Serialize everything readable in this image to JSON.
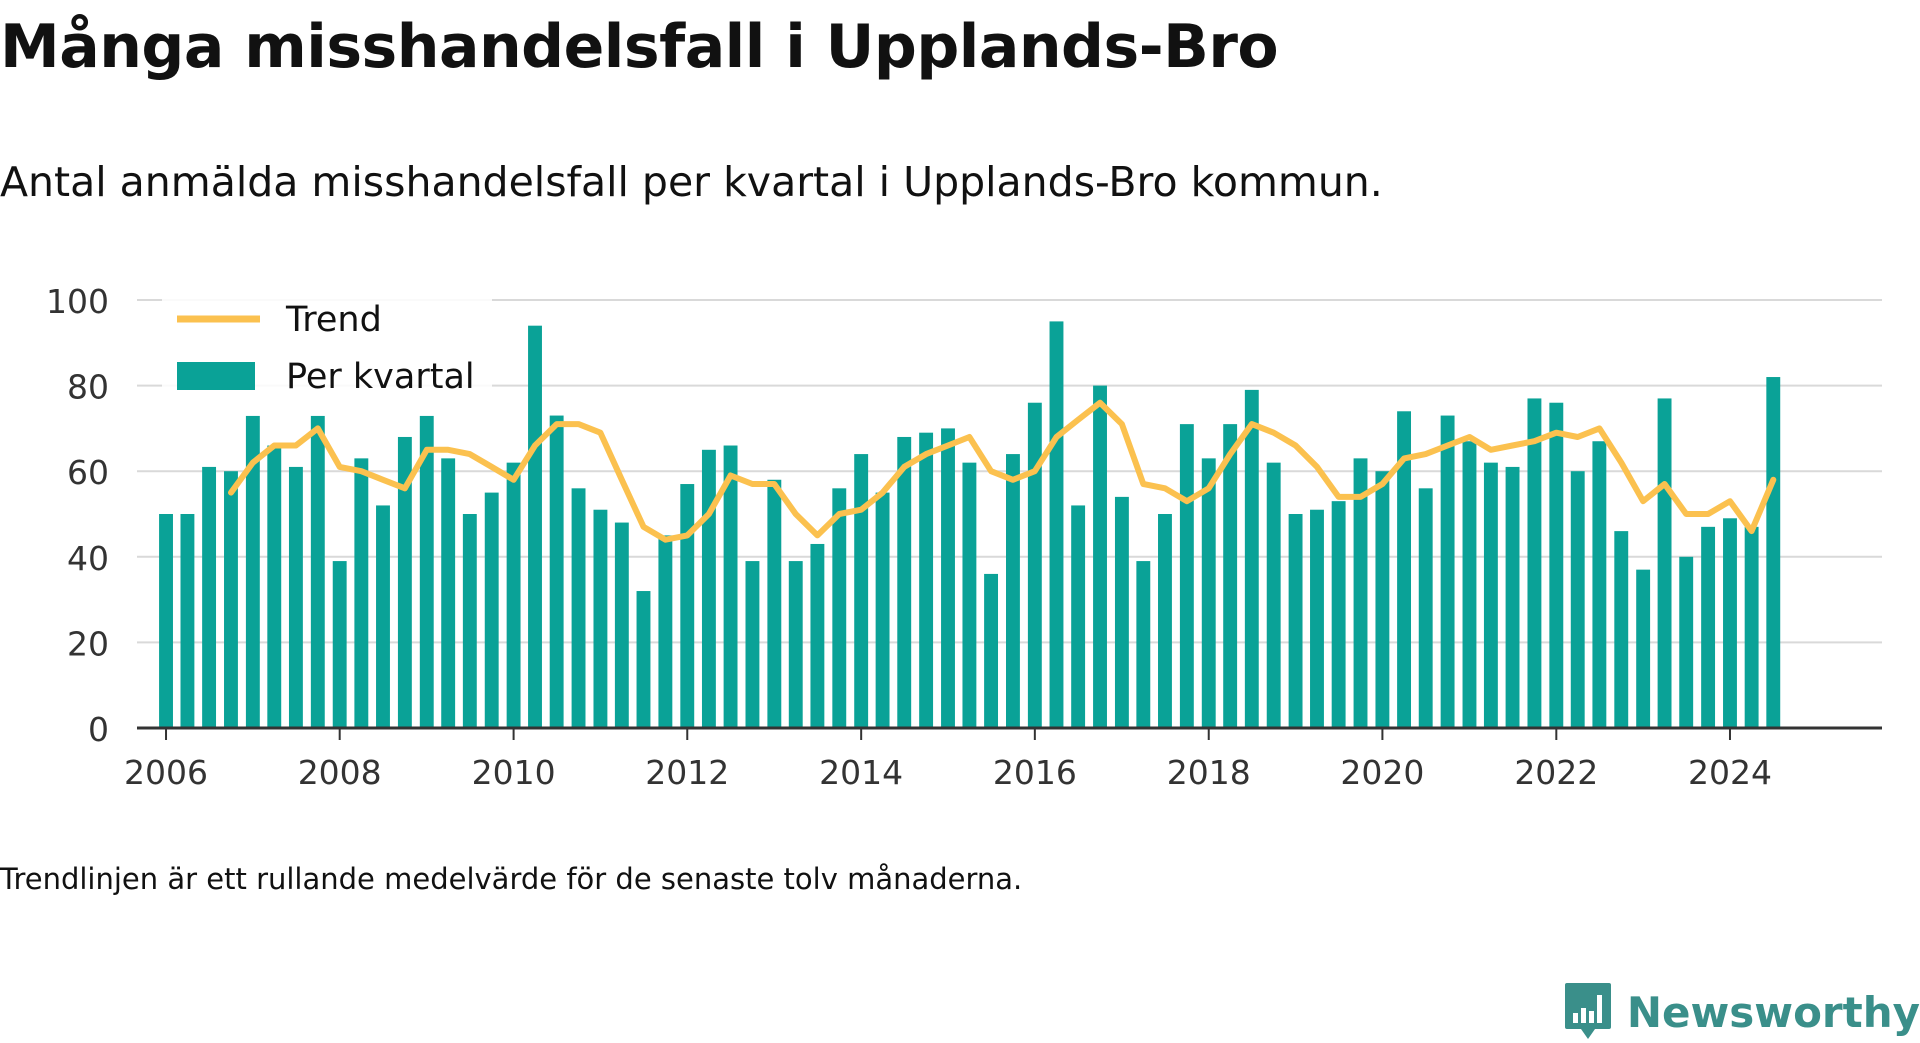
{
  "header": {
    "title": "Många misshandelsfall i Upplands-Bro",
    "subtitle": "Antal anmälda misshandelsfall per kvartal i Upplands-Bro kommun."
  },
  "footer": {
    "note": "Trendlinjen är ett rullande medelvärde för de senaste tolv månaderna.",
    "brand": "Newsworthy",
    "brand_icon": "newsworthy-logo-icon"
  },
  "colors": {
    "bar": "#0aa297",
    "trend": "#fbc14f",
    "grid": "#d9d9d9",
    "axis": "#333333"
  },
  "chart_data": {
    "type": "bar",
    "ylim": [
      0,
      100
    ],
    "yticks": [
      0,
      20,
      40,
      60,
      80,
      100
    ],
    "xlim": [
      "2005-09-01",
      "2025-10-01"
    ],
    "xticks": [
      "2006",
      "2008",
      "2010",
      "2012",
      "2014",
      "2016",
      "2018",
      "2020",
      "2022",
      "2024"
    ],
    "grid": true,
    "legend": {
      "placement": "top-left",
      "entries": [
        "Trend",
        "Per kvartal"
      ]
    },
    "series": [
      {
        "name": "Per kvartal",
        "type": "bar",
        "start_quarter": "2006-Q1",
        "values": [
          50,
          50,
          61,
          60,
          73,
          66,
          61,
          73,
          39,
          63,
          52,
          68,
          73,
          63,
          50,
          55,
          62,
          94,
          73,
          56,
          51,
          48,
          32,
          45,
          57,
          65,
          66,
          39,
          58,
          39,
          43,
          56,
          64,
          55,
          68,
          69,
          70,
          62,
          36,
          64,
          76,
          95,
          52,
          80,
          54,
          39,
          50,
          71,
          63,
          71,
          79,
          62,
          50,
          51,
          53,
          63,
          60,
          74,
          56,
          73,
          67,
          62,
          61,
          77,
          76,
          60,
          67,
          46,
          37,
          77,
          40,
          47,
          49,
          47,
          82
        ]
      },
      {
        "name": "Trend",
        "type": "line",
        "start_quarter": "2006-Q4",
        "values": [
          55,
          62,
          66,
          66,
          70,
          61,
          60,
          58,
          56,
          65,
          65,
          64,
          61,
          58,
          66,
          71,
          71,
          69,
          58,
          47,
          44,
          45,
          50,
          59,
          57,
          57,
          50,
          45,
          50,
          51,
          55,
          61,
          64,
          66,
          68,
          60,
          58,
          60,
          68,
          72,
          76,
          71,
          57,
          56,
          53,
          56,
          64,
          71,
          69,
          66,
          61,
          54,
          54,
          57,
          63,
          64,
          66,
          68,
          65,
          66,
          67,
          69,
          68,
          70,
          62,
          53,
          57,
          50,
          50,
          53,
          46,
          58
        ]
      }
    ]
  }
}
